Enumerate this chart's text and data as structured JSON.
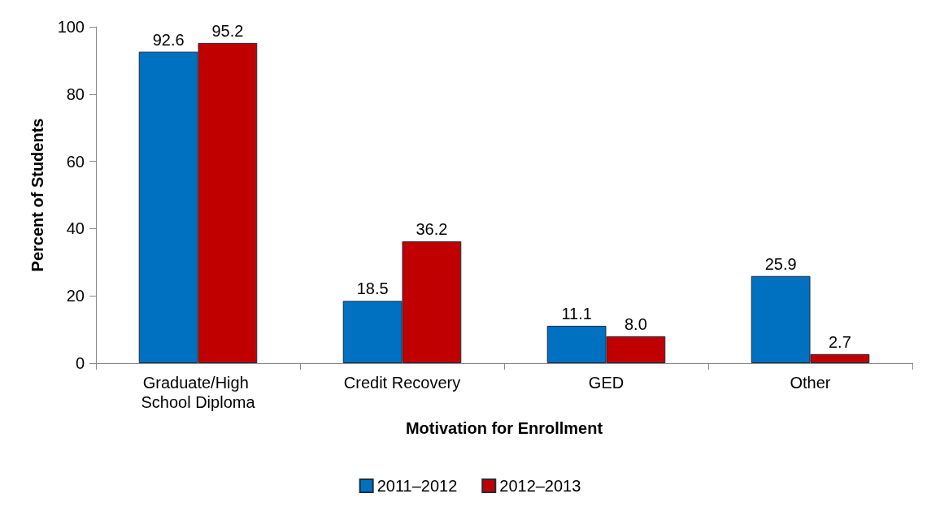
{
  "chart_data": {
    "type": "bar",
    "xlabel": "Motivation for Enrollment",
    "ylabel": "Percent of Students",
    "categories": [
      "Graduate/High School Diploma",
      "Credit Recovery",
      "GED",
      "Other"
    ],
    "series": [
      {
        "name": "2011–2012",
        "color": "#0070c0",
        "values": [
          92.6,
          18.5,
          11.1,
          25.9
        ],
        "value_labels": [
          "92.6",
          "18.5",
          "11.1",
          "25.9"
        ]
      },
      {
        "name": "2012–2013",
        "color": "#c00000",
        "values": [
          95.2,
          36.2,
          8.0,
          2.7
        ],
        "value_labels": [
          "95.2",
          "36.2",
          "8.0",
          "2.7"
        ]
      }
    ],
    "ylim": [
      0,
      100
    ],
    "yticks": [
      0,
      20,
      40,
      60,
      80,
      100
    ],
    "grid": false,
    "legend": "bottom"
  }
}
